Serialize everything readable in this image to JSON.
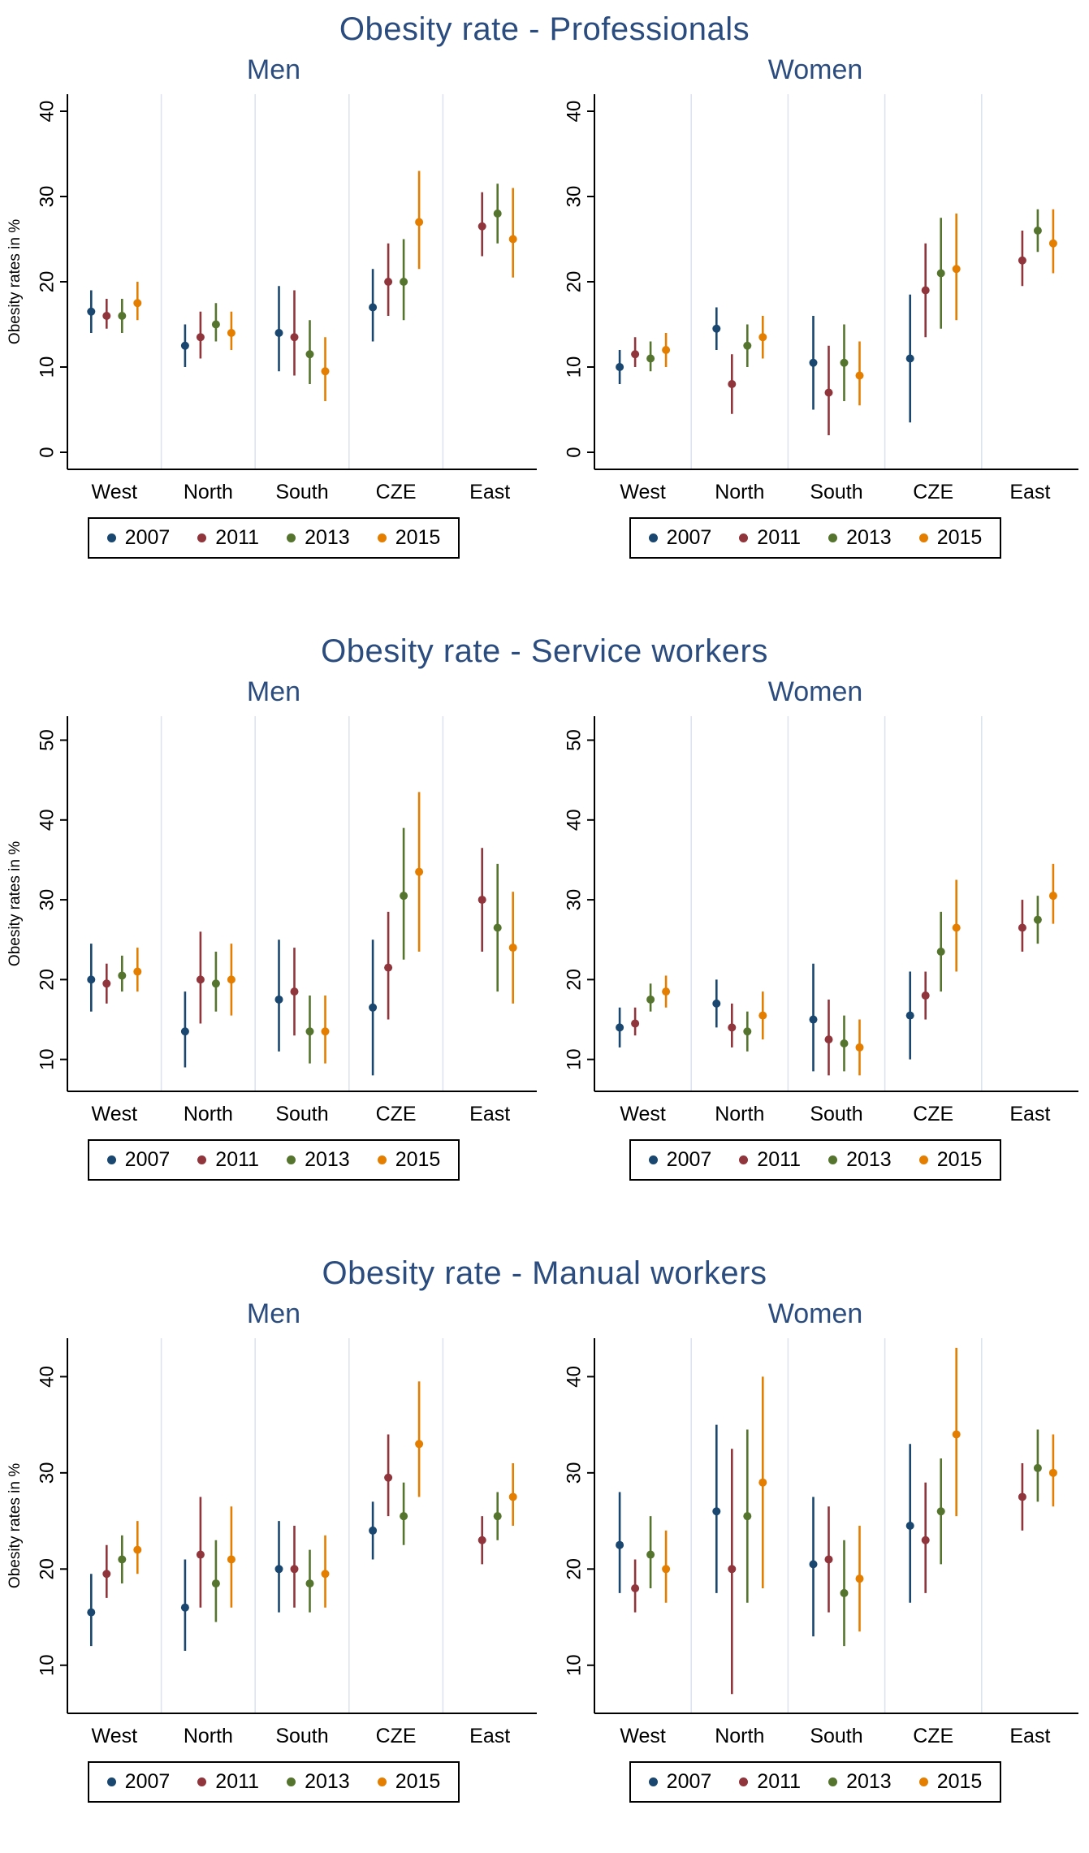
{
  "palette": {
    "years": [
      "2007",
      "2011",
      "2013",
      "2015"
    ],
    "colors": [
      "#1a476f",
      "#90353b",
      "#55752f",
      "#e37e00"
    ],
    "title_color": "#2b4c7e",
    "grid_color": "#dde4ef",
    "axis_color": "#000000"
  },
  "chart_data": [
    {
      "type": "scatter",
      "subtype": "pointrange-with-95ci",
      "title": "Obesity rate - Professionals",
      "ylabel": "Obesity rates in %",
      "yticks": [
        0,
        10,
        20,
        30,
        40
      ],
      "ylim": [
        -2,
        42
      ],
      "categories": [
        "West",
        "North",
        "South",
        "CZE",
        "East"
      ],
      "legend": [
        "2007",
        "2011",
        "2013",
        "2015"
      ],
      "legend_position": "bottom",
      "grid": "vertical-category-separators",
      "panels": [
        {
          "subtitle": "Men",
          "show_ylabel": true,
          "series": [
            {
              "year": "2007",
              "points": [
                [
                  16.5,
                  14,
                  19
                ],
                [
                  12.5,
                  10,
                  15
                ],
                [
                  14,
                  9.5,
                  19.5
                ],
                [
                  17,
                  13,
                  21.5
                ],
                null
              ]
            },
            {
              "year": "2011",
              "points": [
                [
                  16,
                  14.5,
                  18
                ],
                [
                  13.5,
                  11,
                  16.5
                ],
                [
                  13.5,
                  9,
                  19
                ],
                [
                  20,
                  16,
                  24.5
                ],
                [
                  26.5,
                  23,
                  30.5
                ]
              ]
            },
            {
              "year": "2013",
              "points": [
                [
                  16,
                  14,
                  18
                ],
                [
                  15,
                  13,
                  17.5
                ],
                [
                  11.5,
                  8,
                  15.5
                ],
                [
                  20,
                  15.5,
                  25
                ],
                [
                  28,
                  24.5,
                  31.5
                ]
              ]
            },
            {
              "year": "2015",
              "points": [
                [
                  17.5,
                  15.5,
                  20
                ],
                [
                  14,
                  12,
                  16.5
                ],
                [
                  9.5,
                  6,
                  13.5
                ],
                [
                  27,
                  21.5,
                  33
                ],
                [
                  25,
                  20.5,
                  31
                ]
              ]
            }
          ]
        },
        {
          "subtitle": "Women",
          "show_ylabel": false,
          "series": [
            {
              "year": "2007",
              "points": [
                [
                  10,
                  8,
                  12
                ],
                [
                  14.5,
                  12,
                  17
                ],
                [
                  10.5,
                  5,
                  16
                ],
                [
                  11,
                  3.5,
                  18.5
                ],
                null
              ]
            },
            {
              "year": "2011",
              "points": [
                [
                  11.5,
                  10,
                  13.5
                ],
                [
                  8,
                  4.5,
                  11.5
                ],
                [
                  7,
                  2,
                  12.5
                ],
                [
                  19,
                  13.5,
                  24.5
                ],
                [
                  22.5,
                  19.5,
                  26
                ]
              ]
            },
            {
              "year": "2013",
              "points": [
                [
                  11,
                  9.5,
                  13
                ],
                [
                  12.5,
                  10,
                  15
                ],
                [
                  10.5,
                  6,
                  15
                ],
                [
                  21,
                  14.5,
                  27.5
                ],
                [
                  26,
                  23.5,
                  28.5
                ]
              ]
            },
            {
              "year": "2015",
              "points": [
                [
                  12,
                  10,
                  14
                ],
                [
                  13.5,
                  11,
                  16
                ],
                [
                  9,
                  5.5,
                  13
                ],
                [
                  21.5,
                  15.5,
                  28
                ],
                [
                  24.5,
                  21,
                  28.5
                ]
              ]
            }
          ]
        }
      ]
    },
    {
      "type": "scatter",
      "subtype": "pointrange-with-95ci",
      "title": "Obesity rate - Service workers",
      "ylabel": "Obesity rates in %",
      "yticks": [
        10,
        20,
        30,
        40,
        50
      ],
      "ylim": [
        6,
        53
      ],
      "categories": [
        "West",
        "North",
        "South",
        "CZE",
        "East"
      ],
      "legend": [
        "2007",
        "2011",
        "2013",
        "2015"
      ],
      "legend_position": "bottom",
      "grid": "vertical-category-separators",
      "panels": [
        {
          "subtitle": "Men",
          "show_ylabel": true,
          "series": [
            {
              "year": "2007",
              "points": [
                [
                  20,
                  16,
                  24.5
                ],
                [
                  13.5,
                  9,
                  18.5
                ],
                [
                  17.5,
                  11,
                  25
                ],
                [
                  16.5,
                  8,
                  25
                ],
                null
              ]
            },
            {
              "year": "2011",
              "points": [
                [
                  19.5,
                  17,
                  22
                ],
                [
                  20,
                  14.5,
                  26
                ],
                [
                  18.5,
                  13,
                  24
                ],
                [
                  21.5,
                  15,
                  28.5
                ],
                [
                  30,
                  23.5,
                  36.5
                ]
              ]
            },
            {
              "year": "2013",
              "points": [
                [
                  20.5,
                  18.5,
                  23
                ],
                [
                  19.5,
                  16,
                  23.5
                ],
                [
                  13.5,
                  9.5,
                  18
                ],
                [
                  30.5,
                  22.5,
                  39
                ],
                [
                  26.5,
                  18.5,
                  34.5
                ]
              ]
            },
            {
              "year": "2015",
              "points": [
                [
                  21,
                  18.5,
                  24
                ],
                [
                  20,
                  15.5,
                  24.5
                ],
                [
                  13.5,
                  9.5,
                  18
                ],
                [
                  33.5,
                  23.5,
                  43.5
                ],
                [
                  24,
                  17,
                  31
                ]
              ]
            }
          ]
        },
        {
          "subtitle": "Women",
          "show_ylabel": false,
          "series": [
            {
              "year": "2007",
              "points": [
                [
                  14,
                  11.5,
                  16.5
                ],
                [
                  17,
                  14,
                  20
                ],
                [
                  15,
                  8.5,
                  22
                ],
                [
                  15.5,
                  10,
                  21
                ],
                null
              ]
            },
            {
              "year": "2011",
              "points": [
                [
                  14.5,
                  13,
                  16.5
                ],
                [
                  14,
                  11.5,
                  17
                ],
                [
                  12.5,
                  8,
                  17.5
                ],
                [
                  18,
                  15,
                  21
                ],
                [
                  26.5,
                  23.5,
                  30
                ]
              ]
            },
            {
              "year": "2013",
              "points": [
                [
                  17.5,
                  16,
                  19.5
                ],
                [
                  13.5,
                  11,
                  16
                ],
                [
                  12,
                  8.5,
                  15.5
                ],
                [
                  23.5,
                  18.5,
                  28.5
                ],
                [
                  27.5,
                  24.5,
                  30.5
                ]
              ]
            },
            {
              "year": "2015",
              "points": [
                [
                  18.5,
                  16.5,
                  20.5
                ],
                [
                  15.5,
                  12.5,
                  18.5
                ],
                [
                  11.5,
                  8,
                  15
                ],
                [
                  26.5,
                  21,
                  32.5
                ],
                [
                  30.5,
                  27,
                  34.5
                ]
              ]
            }
          ]
        }
      ]
    },
    {
      "type": "scatter",
      "subtype": "pointrange-with-95ci",
      "title": "Obesity rate - Manual workers",
      "ylabel": "Obesity rates in %",
      "yticks": [
        10,
        20,
        30,
        40
      ],
      "ylim": [
        5,
        44
      ],
      "categories": [
        "West",
        "North",
        "South",
        "CZE",
        "East"
      ],
      "legend": [
        "2007",
        "2011",
        "2013",
        "2015"
      ],
      "legend_position": "bottom",
      "grid": "vertical-category-separators",
      "panels": [
        {
          "subtitle": "Men",
          "show_ylabel": true,
          "series": [
            {
              "year": "2007",
              "points": [
                [
                  15.5,
                  12,
                  19.5
                ],
                [
                  16,
                  11.5,
                  21
                ],
                [
                  20,
                  15.5,
                  25
                ],
                [
                  24,
                  21,
                  27
                ],
                null
              ]
            },
            {
              "year": "2011",
              "points": [
                [
                  19.5,
                  17,
                  22.5
                ],
                [
                  21.5,
                  16,
                  27.5
                ],
                [
                  20,
                  16,
                  24.5
                ],
                [
                  29.5,
                  25.5,
                  34
                ],
                [
                  23,
                  20.5,
                  25.5
                ]
              ]
            },
            {
              "year": "2013",
              "points": [
                [
                  21,
                  18.5,
                  23.5
                ],
                [
                  18.5,
                  14.5,
                  23
                ],
                [
                  18.5,
                  15.5,
                  22
                ],
                [
                  25.5,
                  22.5,
                  29
                ],
                [
                  25.5,
                  23,
                  28
                ]
              ]
            },
            {
              "year": "2015",
              "points": [
                [
                  22,
                  19.5,
                  25
                ],
                [
                  21,
                  16,
                  26.5
                ],
                [
                  19.5,
                  16,
                  23.5
                ],
                [
                  33,
                  27.5,
                  39.5
                ],
                [
                  27.5,
                  24.5,
                  31
                ]
              ]
            }
          ]
        },
        {
          "subtitle": "Women",
          "show_ylabel": false,
          "series": [
            {
              "year": "2007",
              "points": [
                [
                  22.5,
                  17.5,
                  28
                ],
                [
                  26,
                  17.5,
                  35
                ],
                [
                  20.5,
                  13,
                  27.5
                ],
                [
                  24.5,
                  16.5,
                  33
                ],
                null
              ]
            },
            {
              "year": "2011",
              "points": [
                [
                  18,
                  15.5,
                  21
                ],
                [
                  20,
                  7,
                  32.5
                ],
                [
                  21,
                  15.5,
                  26.5
                ],
                [
                  23,
                  17.5,
                  29
                ],
                [
                  27.5,
                  24,
                  31
                ]
              ]
            },
            {
              "year": "2013",
              "points": [
                [
                  21.5,
                  18,
                  25.5
                ],
                [
                  25.5,
                  16.5,
                  34.5
                ],
                [
                  17.5,
                  12,
                  23
                ],
                [
                  26,
                  20.5,
                  31.5
                ],
                [
                  30.5,
                  27,
                  34.5
                ]
              ]
            },
            {
              "year": "2015",
              "points": [
                [
                  20,
                  16.5,
                  24
                ],
                [
                  29,
                  18,
                  40
                ],
                [
                  19,
                  13.5,
                  24.5
                ],
                [
                  34,
                  25.5,
                  43
                ],
                [
                  30,
                  26.5,
                  34
                ]
              ]
            }
          ]
        }
      ]
    }
  ]
}
